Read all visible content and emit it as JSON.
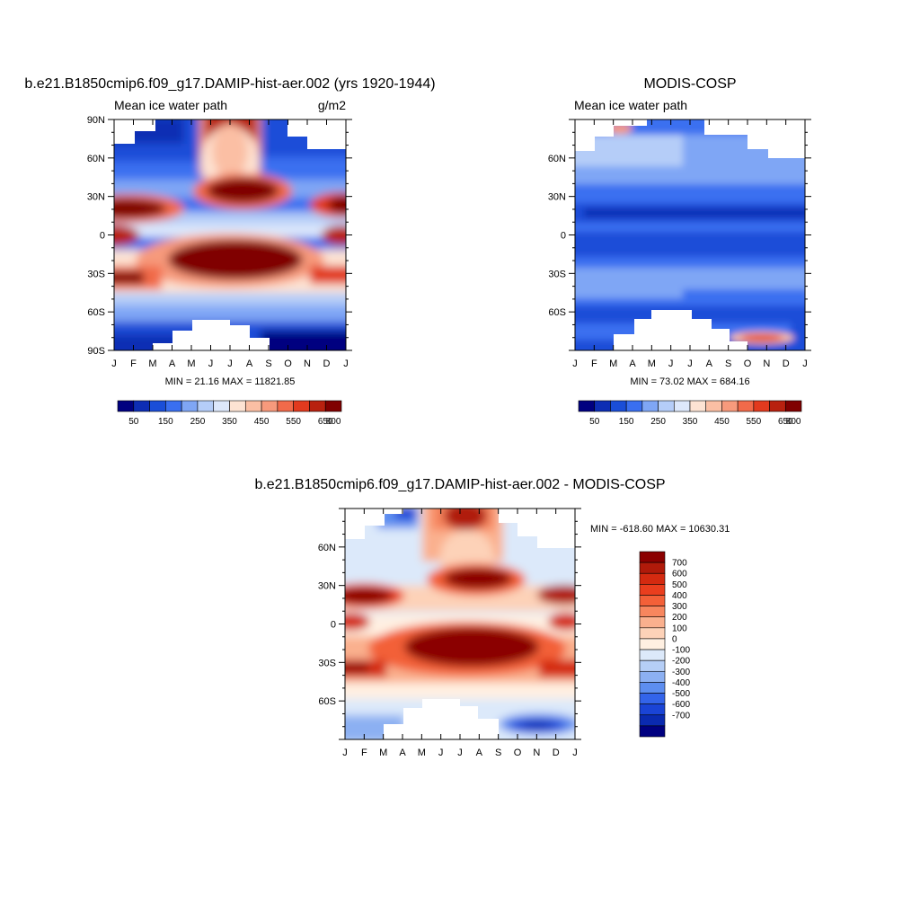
{
  "chart_data": [
    {
      "id": "model",
      "type": "heatmap",
      "title": "b.e21.B1850cmip6.f09_g17.DAMIP-hist-aer.002 (yrs 1920-1944)",
      "subtitle_left": "Mean ice water path",
      "subtitle_right": "g/m2",
      "stats": "MIN =  21.16 MAX = 11821.85",
      "x_tick_labels": [
        "J",
        "F",
        "M",
        "A",
        "M",
        "J",
        "J",
        "A",
        "S",
        "O",
        "N",
        "D",
        "J"
      ],
      "y_tick_labels": [
        "90N",
        "60N",
        "30N",
        "0",
        "30S",
        "60S",
        "90S"
      ],
      "xlim": [
        0,
        12
      ],
      "ylim": [
        -90,
        90
      ],
      "colorbar": {
        "orientation": "horizontal",
        "labels": [
          "50",
          "150",
          "250",
          "350",
          "450",
          "550",
          "650",
          "800"
        ],
        "colors": [
          "#000080",
          "#0d2db4",
          "#1a4ed8",
          "#3a6ff0",
          "#7fa6f5",
          "#b5cdf8",
          "#dde8fb",
          "#fde3d3",
          "#fbbfa4",
          "#f79a7c",
          "#f16a4a",
          "#e23a1e",
          "#b8210f",
          "#800000"
        ]
      },
      "features": [
        {
          "label": "tropical maximum",
          "month": 6.8,
          "lat": -20,
          "value": 800
        },
        {
          "label": "northern summer maximum",
          "month": 6.9,
          "lat": 33,
          "value": 800
        },
        {
          "label": "arctic summer maximum",
          "month": 6.8,
          "lat": 80,
          "value": 800
        }
      ]
    },
    {
      "id": "obs",
      "type": "heatmap",
      "title": "MODIS-COSP",
      "subtitle_left": "Mean ice water path",
      "stats": "MIN =  73.02 MAX = 684.16",
      "x_tick_labels": [
        "J",
        "F",
        "M",
        "A",
        "M",
        "J",
        "J",
        "A",
        "S",
        "O",
        "N",
        "D",
        "J"
      ],
      "y_tick_labels": [
        "60N",
        "30N",
        "0",
        "30S",
        "60S"
      ],
      "xlim": [
        0,
        12
      ],
      "ylim": [
        -90,
        90
      ],
      "colorbar": {
        "orientation": "horizontal",
        "labels": [
          "50",
          "150",
          "250",
          "350",
          "450",
          "550",
          "650",
          "800"
        ],
        "colors": [
          "#000080",
          "#0d2db4",
          "#1a4ed8",
          "#3a6ff0",
          "#7fa6f5",
          "#b5cdf8",
          "#dde8fb",
          "#fde3d3",
          "#fbbfa4",
          "#f79a7c",
          "#f16a4a",
          "#e23a1e",
          "#b8210f",
          "#800000"
        ]
      },
      "features": [
        {
          "label": "antarctic spring maximum",
          "month": 10.3,
          "lat": -80,
          "value": 650
        }
      ]
    },
    {
      "id": "diff",
      "type": "heatmap",
      "title": "b.e21.B1850cmip6.f09_g17.DAMIP-hist-aer.002 - MODIS-COSP",
      "stats": "MIN = -618.60 MAX = 10630.31",
      "x_tick_labels": [
        "J",
        "F",
        "M",
        "A",
        "M",
        "J",
        "J",
        "A",
        "S",
        "O",
        "N",
        "D",
        "J"
      ],
      "y_tick_labels": [
        "60N",
        "30N",
        "0",
        "30S",
        "60S"
      ],
      "xlim": [
        0,
        12
      ],
      "ylim": [
        -90,
        90
      ],
      "colorbar": {
        "orientation": "vertical",
        "labels": [
          "700",
          "600",
          "500",
          "400",
          "300",
          "200",
          "100",
          "0",
          "-100",
          "-200",
          "-300",
          "-400",
          "-500",
          "-600",
          "-700"
        ],
        "colors": [
          "#8b0000",
          "#b01a0a",
          "#d42a10",
          "#ea3e1e",
          "#f36038",
          "#f7865e",
          "#fab08e",
          "#fdd2b8",
          "#fff0e2",
          "#dce9fa",
          "#b5cef6",
          "#8cb0f2",
          "#5d8ef0",
          "#3364ea",
          "#1a44d6",
          "#0a2ab0",
          "#000080"
        ]
      },
      "features": [
        {
          "label": "tropical positive bias",
          "month": 6.8,
          "lat": -20,
          "value": 700
        },
        {
          "label": "antarctic negative bias",
          "month": 10.0,
          "lat": -82,
          "value": -700
        }
      ]
    }
  ]
}
